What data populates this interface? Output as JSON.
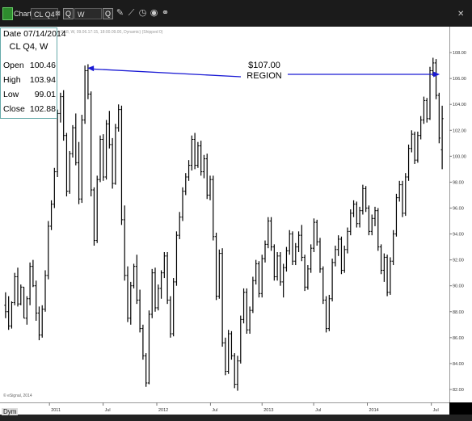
{
  "toolbar": {
    "title": "Chart",
    "symbol": "CL Q4",
    "symbol_btn": "Q",
    "interval": "W",
    "interval_btn": "Q",
    "close_glyph": "✕",
    "icons": [
      "pencil-icon",
      "draw-icon",
      "clock-icon",
      "circle-icon",
      "link-icon"
    ]
  },
  "info_panel": {
    "date": "Date 07/14/2014",
    "symbol": "CL Q4, W",
    "rows": [
      {
        "label": "Open",
        "value": "100.46"
      },
      {
        "label": "High",
        "value": "103.94"
      },
      {
        "label": "Low",
        "value": "99.01"
      },
      {
        "label": "Close",
        "value": "102.88"
      }
    ]
  },
  "header_line": "RE8, W, 09.06.17:15, 18:00.09.00, Dynamic) (Shipped 0)",
  "copyright": "© eSignal, 2014",
  "status_label": "Dym",
  "annotation": {
    "line1": "$107.00",
    "line2": "REGION",
    "arrow_color": "#1a1ad4"
  },
  "chart_data": {
    "type": "ohlc",
    "bar_color": "#000000",
    "x_ticks": [
      "2011",
      "Jul",
      "2012",
      "Jul",
      "2013",
      "Jul",
      "2014",
      "Jul"
    ],
    "y_ticks": [
      "108.00",
      "106.00",
      "104.00",
      "102.00",
      "100.00",
      "98.00",
      "96.00",
      "94.00",
      "92.00",
      "90.00",
      "88.00",
      "86.00",
      "84.00",
      "82.00"
    ],
    "ylim": [
      81.0,
      110.0
    ],
    "grid": false,
    "reference_level": 107.0,
    "bars": [
      [
        88.5,
        89.5,
        87.5,
        88.0
      ],
      [
        88.0,
        89.2,
        86.6,
        86.9
      ],
      [
        86.9,
        88.8,
        86.7,
        88.7
      ],
      [
        88.7,
        91.0,
        88.5,
        90.7
      ],
      [
        90.7,
        91.4,
        88.4,
        88.6
      ],
      [
        88.6,
        90.1,
        88.5,
        89.9
      ],
      [
        89.9,
        89.9,
        87.5,
        87.5
      ],
      [
        87.5,
        89.2,
        87.0,
        89.0
      ],
      [
        89.0,
        91.8,
        88.5,
        91.5
      ],
      [
        91.5,
        92.0,
        89.9,
        90.0
      ],
      [
        90.0,
        90.4,
        87.3,
        87.9
      ],
      [
        87.9,
        88.4,
        85.8,
        86.2
      ],
      [
        86.2,
        88.5,
        86.0,
        88.2
      ],
      [
        88.2,
        91.2,
        88.0,
        90.8
      ],
      [
        90.8,
        95.0,
        90.5,
        94.6
      ],
      [
        94.6,
        96.6,
        94.3,
        96.3
      ],
      [
        96.3,
        99.1,
        96.0,
        98.8
      ],
      [
        98.8,
        103.6,
        98.4,
        103.3
      ],
      [
        103.3,
        104.9,
        102.6,
        104.6
      ],
      [
        104.6,
        105.1,
        101.2,
        101.6
      ],
      [
        101.6,
        101.8,
        96.9,
        97.3
      ],
      [
        97.3,
        100.4,
        97.1,
        100.2
      ],
      [
        100.2,
        102.4,
        99.9,
        102.2
      ],
      [
        102.2,
        103.3,
        99.3,
        99.5
      ],
      [
        99.5,
        101.1,
        96.3,
        96.7
      ],
      [
        96.7,
        103.2,
        96.4,
        102.8
      ],
      [
        102.8,
        107.0,
        102.5,
        106.6
      ],
      [
        106.6,
        107.1,
        104.4,
        104.8
      ],
      [
        104.8,
        105.0,
        96.9,
        97.4
      ],
      [
        97.4,
        97.6,
        93.1,
        93.5
      ],
      [
        93.5,
        98.5,
        93.3,
        98.2
      ],
      [
        98.2,
        101.6,
        98.0,
        101.3
      ],
      [
        101.3,
        101.7,
        98.1,
        98.4
      ],
      [
        98.4,
        102.8,
        98.2,
        102.5
      ],
      [
        102.5,
        103.5,
        100.6,
        100.9
      ],
      [
        100.9,
        101.4,
        97.5,
        97.9
      ],
      [
        97.9,
        102.5,
        97.8,
        102.2
      ],
      [
        102.2,
        104.0,
        101.9,
        103.6
      ],
      [
        103.6,
        103.9,
        94.7,
        95.1
      ],
      [
        95.1,
        96.2,
        90.4,
        90.8
      ],
      [
        90.8,
        91.5,
        87.2,
        87.5
      ],
      [
        87.5,
        90.3,
        87.0,
        90.0
      ],
      [
        90.0,
        91.7,
        89.8,
        91.5
      ],
      [
        91.5,
        92.4,
        88.6,
        88.9
      ],
      [
        88.9,
        89.7,
        86.4,
        86.7
      ],
      [
        86.7,
        87.0,
        84.3,
        84.6
      ],
      [
        84.6,
        84.8,
        82.2,
        82.5
      ],
      [
        82.5,
        88.1,
        82.4,
        87.8
      ],
      [
        87.8,
        91.3,
        87.5,
        91.0
      ],
      [
        91.0,
        91.4,
        88.0,
        88.3
      ],
      [
        88.3,
        90.1,
        88.1,
        89.8
      ],
      [
        89.8,
        91.2,
        89.0,
        91.0
      ],
      [
        91.0,
        92.6,
        90.6,
        92.3
      ],
      [
        92.3,
        92.6,
        88.6,
        88.9
      ],
      [
        88.9,
        89.2,
        86.0,
        86.3
      ],
      [
        86.3,
        90.6,
        86.1,
        90.3
      ],
      [
        90.3,
        94.2,
        90.0,
        93.9
      ],
      [
        93.9,
        95.7,
        93.6,
        95.3
      ],
      [
        95.3,
        97.6,
        95.0,
        97.3
      ],
      [
        97.3,
        98.7,
        97.0,
        98.4
      ],
      [
        98.4,
        99.7,
        98.1,
        99.3
      ],
      [
        99.3,
        101.6,
        98.9,
        101.3
      ],
      [
        101.3,
        101.8,
        99.0,
        99.3
      ],
      [
        99.3,
        101.1,
        99.1,
        100.8
      ],
      [
        100.8,
        101.2,
        98.5,
        98.8
      ],
      [
        98.8,
        100.1,
        98.3,
        99.8
      ],
      [
        99.8,
        100.2,
        96.7,
        97.0
      ],
      [
        97.0,
        98.5,
        96.6,
        98.2
      ],
      [
        98.2,
        98.5,
        93.5,
        93.8
      ],
      [
        93.8,
        94.1,
        88.9,
        89.2
      ],
      [
        89.2,
        92.8,
        89.0,
        92.5
      ],
      [
        92.5,
        92.9,
        85.3,
        85.6
      ],
      [
        85.6,
        86.0,
        83.1,
        83.4
      ],
      [
        83.4,
        86.6,
        83.2,
        86.3
      ],
      [
        86.3,
        86.5,
        84.3,
        84.6
      ],
      [
        84.6,
        84.8,
        82.1,
        82.4
      ],
      [
        82.4,
        84.6,
        81.9,
        84.2
      ],
      [
        84.2,
        87.7,
        84.0,
        87.4
      ],
      [
        87.4,
        89.8,
        87.1,
        89.5
      ],
      [
        89.5,
        89.8,
        86.3,
        86.6
      ],
      [
        86.6,
        88.4,
        86.3,
        88.1
      ],
      [
        88.1,
        90.7,
        87.9,
        90.4
      ],
      [
        90.4,
        92.0,
        90.1,
        91.7
      ],
      [
        91.7,
        91.9,
        89.1,
        89.4
      ],
      [
        89.4,
        92.4,
        89.1,
        92.1
      ],
      [
        92.1,
        93.5,
        91.8,
        93.2
      ],
      [
        93.2,
        95.3,
        92.9,
        95.0
      ],
      [
        95.0,
        95.3,
        92.7,
        93.0
      ],
      [
        93.0,
        93.2,
        90.4,
        90.7
      ],
      [
        90.7,
        92.6,
        90.4,
        92.3
      ],
      [
        92.3,
        92.6,
        90.0,
        90.3
      ],
      [
        90.3,
        91.7,
        89.1,
        91.4
      ],
      [
        91.4,
        93.0,
        91.1,
        92.7
      ],
      [
        92.7,
        94.3,
        92.4,
        94.0
      ],
      [
        94.0,
        94.2,
        91.6,
        91.9
      ],
      [
        91.9,
        93.3,
        91.6,
        93.0
      ],
      [
        93.0,
        94.2,
        92.6,
        93.9
      ],
      [
        93.9,
        94.7,
        91.9,
        92.2
      ],
      [
        92.2,
        92.4,
        89.6,
        89.9
      ],
      [
        89.9,
        91.6,
        89.7,
        91.3
      ],
      [
        91.3,
        93.2,
        91.0,
        92.9
      ],
      [
        92.9,
        95.2,
        92.6,
        94.9
      ],
      [
        94.9,
        95.1,
        93.1,
        93.4
      ],
      [
        93.4,
        93.7,
        91.0,
        91.3
      ],
      [
        91.3,
        91.5,
        88.6,
        88.9
      ],
      [
        88.9,
        89.2,
        86.4,
        86.7
      ],
      [
        86.7,
        89.3,
        86.5,
        89.0
      ],
      [
        89.0,
        92.1,
        88.8,
        91.8
      ],
      [
        91.8,
        93.1,
        91.5,
        92.8
      ],
      [
        92.8,
        93.9,
        92.3,
        93.6
      ],
      [
        93.6,
        93.8,
        90.9,
        91.2
      ],
      [
        91.2,
        93.1,
        91.0,
        92.8
      ],
      [
        92.8,
        94.5,
        92.5,
        94.2
      ],
      [
        94.2,
        95.9,
        93.9,
        95.6
      ],
      [
        95.6,
        96.6,
        95.3,
        96.3
      ],
      [
        96.3,
        96.5,
        94.5,
        94.8
      ],
      [
        94.8,
        96.1,
        94.5,
        95.8
      ],
      [
        95.8,
        97.8,
        95.5,
        97.5
      ],
      [
        97.5,
        97.7,
        95.7,
        96.0
      ],
      [
        96.0,
        96.2,
        93.9,
        94.2
      ],
      [
        94.2,
        95.5,
        93.9,
        95.2
      ],
      [
        95.2,
        96.1,
        94.6,
        95.8
      ],
      [
        95.8,
        96.0,
        92.7,
        93.0
      ],
      [
        93.0,
        93.2,
        90.9,
        91.2
      ],
      [
        91.2,
        92.5,
        90.3,
        92.2
      ],
      [
        92.2,
        92.4,
        89.2,
        89.5
      ],
      [
        89.5,
        92.2,
        89.3,
        91.9
      ],
      [
        91.9,
        94.3,
        91.6,
        94.0
      ],
      [
        94.0,
        97.1,
        93.8,
        96.8
      ],
      [
        96.8,
        98.1,
        96.5,
        97.8
      ],
      [
        97.8,
        98.1,
        95.3,
        95.6
      ],
      [
        95.6,
        98.7,
        95.4,
        98.4
      ],
      [
        98.4,
        100.9,
        98.1,
        100.6
      ],
      [
        100.6,
        102.0,
        100.3,
        101.7
      ],
      [
        101.7,
        101.9,
        99.4,
        99.7
      ],
      [
        99.7,
        101.9,
        99.5,
        101.6
      ],
      [
        101.6,
        103.1,
        101.3,
        102.8
      ],
      [
        102.8,
        104.6,
        102.5,
        104.3
      ],
      [
        104.3,
        104.5,
        102.6,
        102.9
      ],
      [
        102.9,
        106.9,
        102.8,
        106.6
      ],
      [
        106.6,
        107.6,
        106.2,
        107.2
      ],
      [
        107.2,
        107.5,
        104.4,
        104.7
      ],
      [
        104.7,
        104.9,
        101.0,
        101.4
      ],
      [
        100.5,
        103.9,
        99.0,
        102.9
      ]
    ]
  }
}
